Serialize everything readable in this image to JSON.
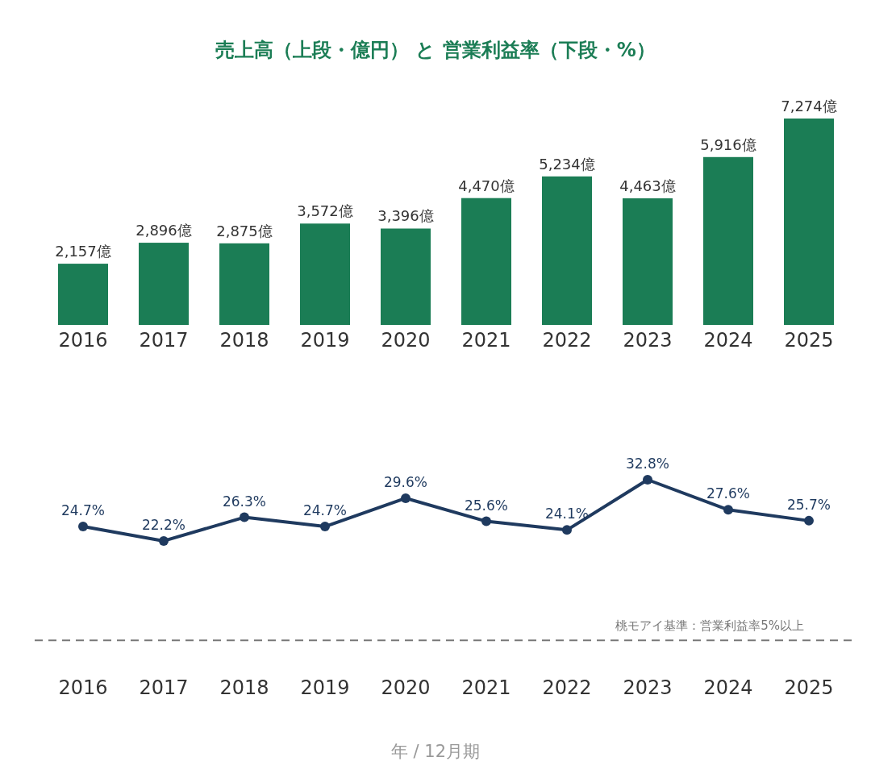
{
  "chart_data": [
    {
      "type": "bar",
      "title": "売上高（上段・億円） と 営業利益率（下段・%）",
      "categories": [
        "2016",
        "2017",
        "2018",
        "2019",
        "2020",
        "2021",
        "2022",
        "2023",
        "2024",
        "2025"
      ],
      "values": [
        2157,
        2896,
        2875,
        3572,
        3396,
        4470,
        5234,
        4463,
        5916,
        7274
      ],
      "value_labels": [
        "2,157億",
        "2,896億",
        "2,875億",
        "3,572億",
        "3,396億",
        "4,470億",
        "5,234億",
        "4,463億",
        "5,916億",
        "7,274億"
      ],
      "color": "#1b7d55",
      "ylim": [
        0,
        7274
      ],
      "tick_labels": "x"
    },
    {
      "type": "line",
      "xlabel": "年 / 12月期",
      "categories": [
        "2016",
        "2017",
        "2018",
        "2019",
        "2020",
        "2021",
        "2022",
        "2023",
        "2024",
        "2025"
      ],
      "values": [
        24.7,
        22.2,
        26.3,
        24.7,
        29.6,
        25.6,
        24.1,
        32.8,
        27.6,
        25.7
      ],
      "value_labels": [
        "24.7%",
        "22.2%",
        "26.3%",
        "24.7%",
        "29.6%",
        "25.6%",
        "24.1%",
        "32.8%",
        "27.6%",
        "25.7%"
      ],
      "color": "#1f3a5f",
      "marker": "circle",
      "tick_labels": "x",
      "ref_lines": [
        {
          "axis": "y",
          "value": 5,
          "label": "桃モアイ基準：営業利益率5%以上",
          "color": "#777777",
          "line_style": "dashed"
        }
      ]
    }
  ]
}
